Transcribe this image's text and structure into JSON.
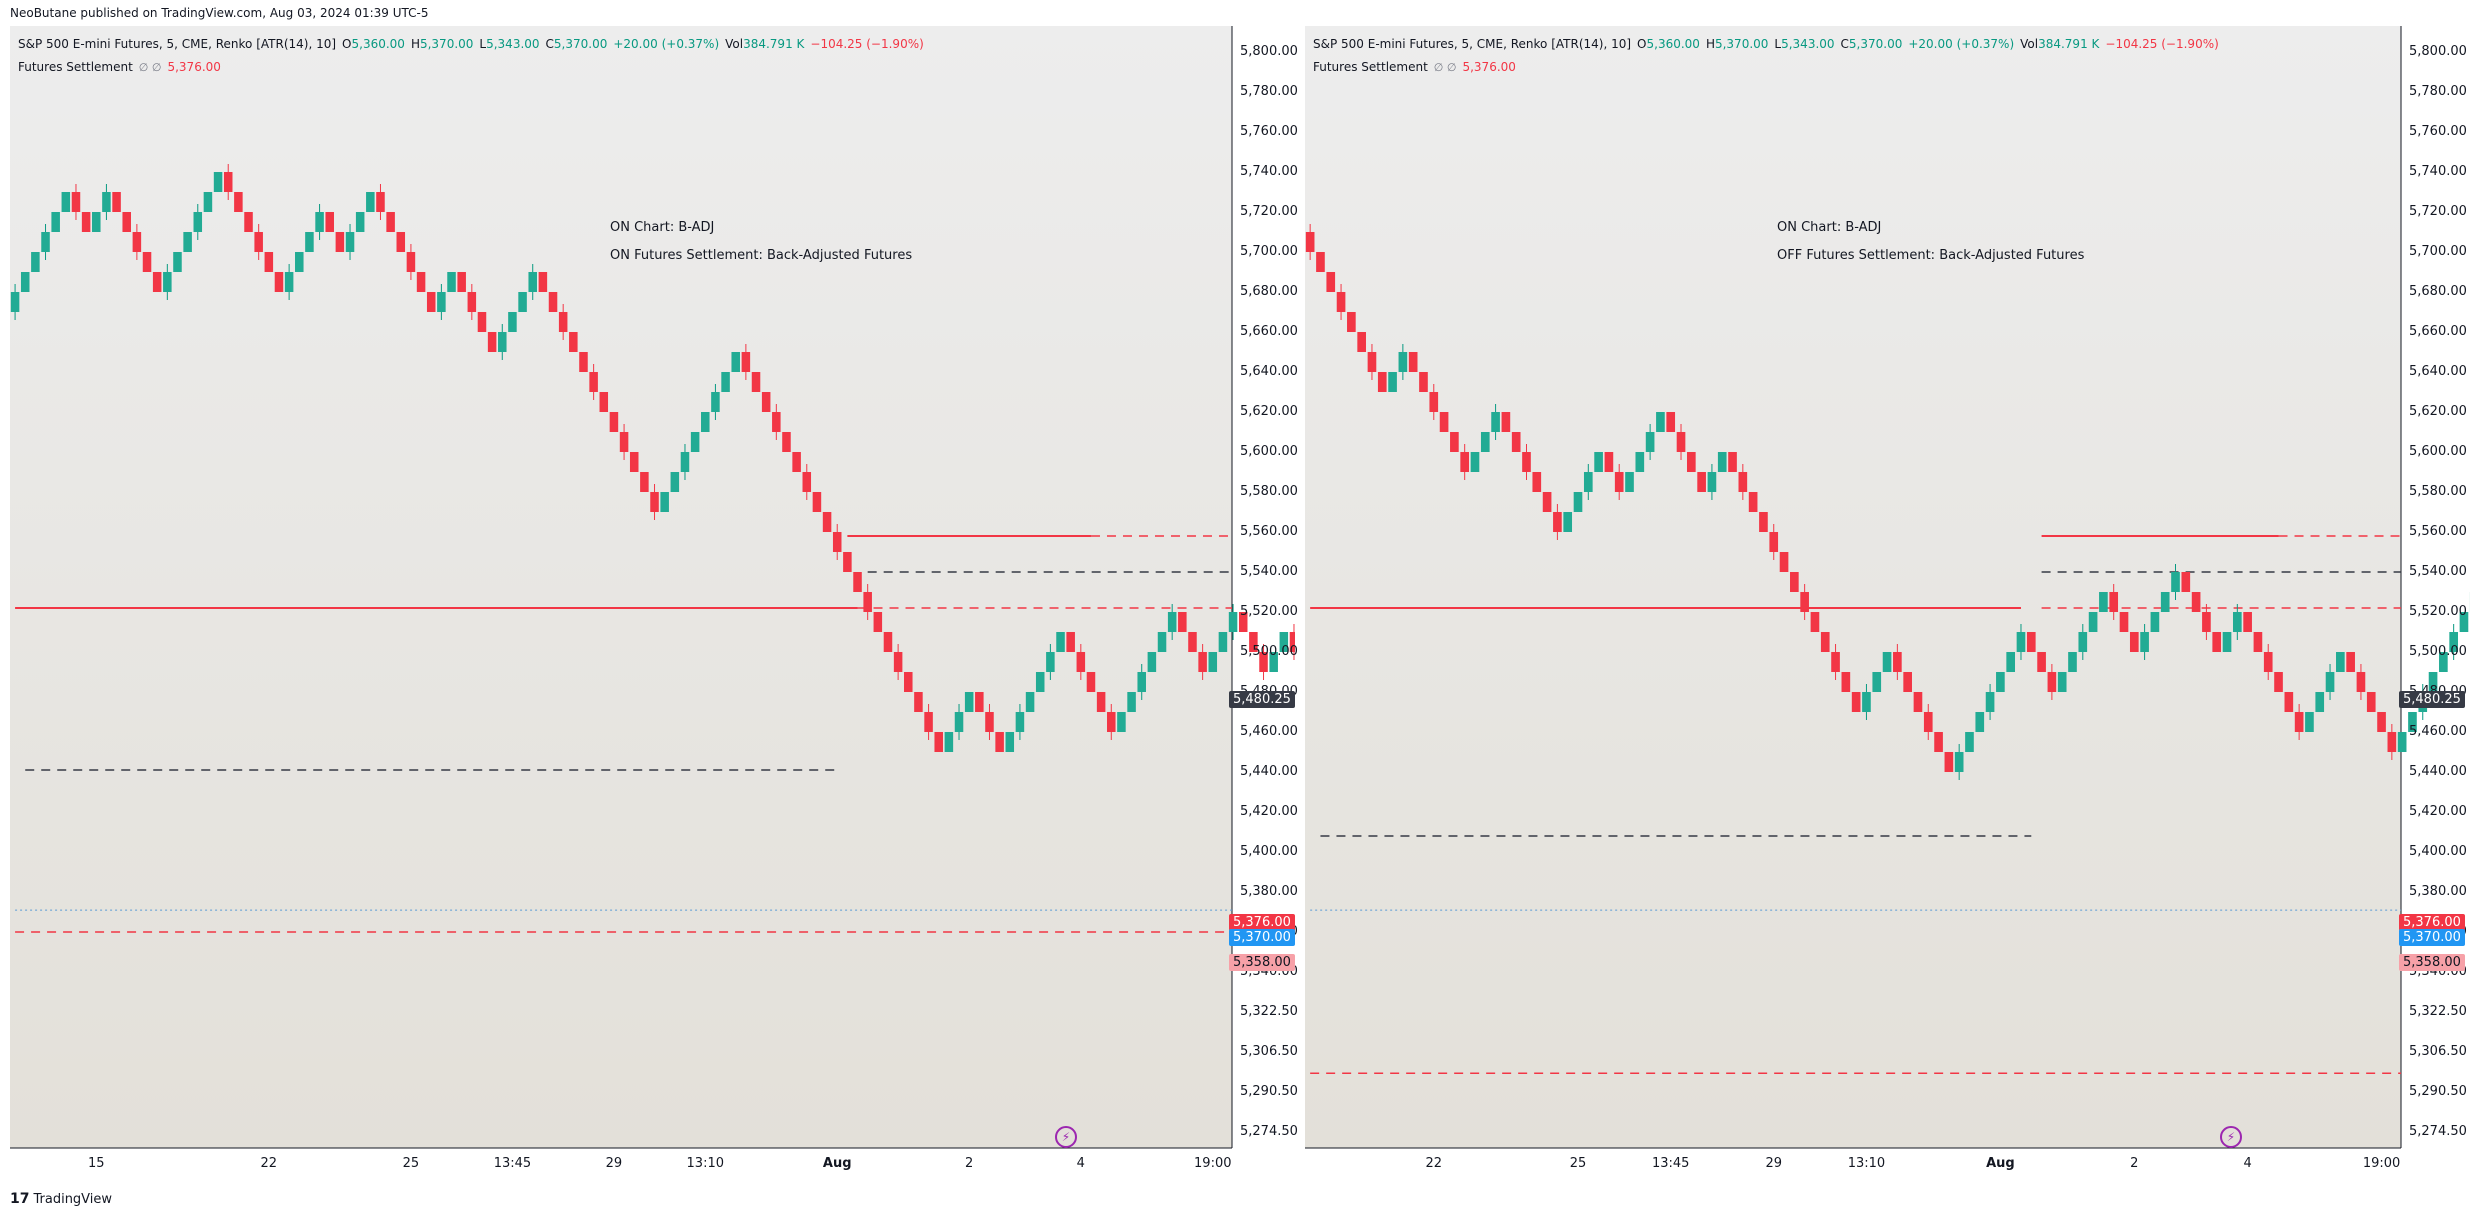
{
  "header": {
    "published": "NeoButane published on TradingView.com, Aug 03, 2024 01:39 UTC-5"
  },
  "footer": {
    "brand": "TradingView",
    "logo": "17"
  },
  "colors": {
    "up": "#089981",
    "down": "#f23645",
    "level_red": "#f23645",
    "level_black": "#363a45",
    "last_price": "#2196f3",
    "current": "#363a45",
    "settle_bg": "#f7a1a8"
  },
  "icons": {
    "bolt": "lightning-bolt-icon",
    "visibility": "eye-off-icon"
  },
  "panels": [
    {
      "legend": {
        "symbol": "S&P 500 E-mini Futures, 5, CME, Renko [ATR(14), 10]",
        "o_label": "O",
        "o": "5,360.00",
        "h_label": "H",
        "h": "5,370.00",
        "l_label": "L",
        "l": "5,343.00",
        "c_label": "C",
        "c": "5,370.00",
        "change": "+20.00 (+0.37%)",
        "vol_label": "Vol",
        "vol": "384.791 K",
        "vol_change": "−104.25 (−1.90%)",
        "indicator": "Futures Settlement",
        "indicator_icons": "∅  ∅",
        "indicator_value": "5,376.00"
      },
      "notes": [
        "ON Chart: B-ADJ",
        "ON Futures Settlement: Back-Adjusted Futures"
      ],
      "price_tags": {
        "settle": "5,376.00",
        "last": "5,370.00",
        "prev": "5,358.00",
        "current": "5,480.25"
      }
    },
    {
      "legend": {
        "symbol": "S&P 500 E-mini Futures, 5, CME, Renko [ATR(14), 10]",
        "o_label": "O",
        "o": "5,360.00",
        "h_label": "H",
        "h": "5,370.00",
        "l_label": "L",
        "l": "5,343.00",
        "c_label": "C",
        "c": "5,370.00",
        "change": "+20.00 (+0.37%)",
        "vol_label": "Vol",
        "vol": "384.791 K",
        "vol_change": "−104.25 (−1.90%)",
        "indicator": "Futures Settlement",
        "indicator_icons": "∅  ∅",
        "indicator_value": "5,376.00"
      },
      "notes": [
        "ON Chart: B-ADJ",
        "OFF Futures Settlement: Back-Adjusted Futures"
      ],
      "price_tags": {
        "settle": "5,376.00",
        "last": "5,370.00",
        "prev": "5,358.00",
        "current": "5,480.25"
      }
    }
  ],
  "chart_data": [
    {
      "type": "renko",
      "title": "S&P 500 E-mini Futures, 5, CME, Renko [ATR(14), 10]",
      "y_ticks": [
        "5,800.00",
        "5,780.00",
        "5,760.00",
        "5,740.00",
        "5,720.00",
        "5,700.00",
        "5,680.00",
        "5,660.00",
        "5,640.00",
        "5,620.00",
        "5,600.00",
        "5,580.00",
        "5,560.00",
        "5,540.00",
        "5,520.00",
        "5,500.00",
        "5,480.00",
        "5,460.00",
        "5,440.00",
        "5,420.00",
        "5,400.00",
        "5,380.00",
        "5,358.00",
        "5,340.00",
        "5,322.50",
        "5,306.50",
        "5,290.50",
        "5,274.50"
      ],
      "y_tick_values": [
        5800,
        5780,
        5760,
        5740,
        5720,
        5700,
        5680,
        5660,
        5640,
        5620,
        5600,
        5580,
        5560,
        5540,
        5520,
        5500,
        5480,
        5460,
        5440,
        5420,
        5400,
        5380,
        5358,
        5340,
        5322.5,
        5306.5,
        5290.5,
        5274.5
      ],
      "x_ticks": [
        "15",
        "22",
        "25",
        "13:45",
        "29",
        "13:10",
        "Aug",
        "2",
        "4",
        "19:00"
      ],
      "x_tick_index": [
        8,
        25,
        39,
        49,
        59,
        68,
        81,
        94,
        105,
        118
      ],
      "n_bricks": 104,
      "path": [
        [
          5680,
          6
        ],
        [
          5700,
          -2
        ],
        [
          5680,
          2
        ],
        [
          5700,
          -5
        ],
        [
          5650,
          6
        ],
        [
          5710,
          -6
        ],
        [
          5650,
          4
        ],
        [
          5690,
          -2
        ],
        [
          5670,
          3
        ],
        [
          5700,
          -6
        ],
        [
          5640,
          2
        ],
        [
          5660,
          -4
        ],
        [
          5620,
          4
        ],
        [
          5660,
          -3
        ],
        [
          5630,
          -9
        ],
        [
          5540,
          8
        ],
        [
          5620,
          -10
        ],
        [
          5520,
          -7
        ],
        [
          5450,
          -3
        ],
        [
          5420,
          3
        ],
        [
          5450,
          -3
        ],
        [
          5420,
          6
        ],
        [
          5480,
          -5
        ],
        [
          5430,
          6
        ],
        [
          5490,
          -3
        ],
        [
          5460,
          3
        ],
        [
          5490,
          -3
        ],
        [
          5460,
          2
        ],
        [
          5480,
          -2
        ],
        [
          5460,
          9
        ],
        [
          5550,
          -2
        ],
        [
          5530,
          4
        ],
        [
          5570,
          -3
        ],
        [
          5540,
          2
        ],
        [
          5560,
          -9
        ],
        [
          5470,
          2
        ],
        [
          5490,
          -5
        ],
        [
          5440,
          2
        ],
        [
          5460,
          -9
        ],
        [
          5370,
          2
        ],
        [
          5390,
          -4
        ],
        [
          5350,
          3
        ],
        [
          5380,
          -2
        ],
        [
          5360,
          1
        ]
      ],
      "path_start": 5670,
      "horizontal_levels": [
        {
          "value": 5522,
          "style": "solid",
          "color": "red",
          "from": 0,
          "to": 83
        },
        {
          "value": 5522,
          "style": "dashed",
          "color": "red",
          "from": 83,
          "to": 120
        },
        {
          "value": 5558,
          "style": "solid",
          "color": "red",
          "from": 82,
          "to": 106
        },
        {
          "value": 5558,
          "style": "dashed",
          "color": "red",
          "from": 106,
          "to": 120
        },
        {
          "value": 5540,
          "style": "dashed",
          "color": "black",
          "from": 84,
          "to": 120
        },
        {
          "value": 5441,
          "style": "dashed",
          "color": "black",
          "from": 1,
          "to": 81
        },
        {
          "value": 5358,
          "style": "dashed",
          "color": "red",
          "from": 0,
          "to": 120
        },
        {
          "value": 5370,
          "style": "dotted",
          "color": "blue",
          "from": 0,
          "to": 120
        }
      ]
    },
    {
      "type": "renko",
      "title": "S&P 500 E-mini Futures, 5, CME, Renko [ATR(14), 10]",
      "y_ticks": [
        "5,800.00",
        "5,780.00",
        "5,760.00",
        "5,740.00",
        "5,720.00",
        "5,700.00",
        "5,680.00",
        "5,660.00",
        "5,640.00",
        "5,620.00",
        "5,600.00",
        "5,580.00",
        "5,560.00",
        "5,540.00",
        "5,520.00",
        "5,500.00",
        "5,480.00",
        "5,460.00",
        "5,440.00",
        "5,420.00",
        "5,400.00",
        "5,380.00",
        "5,358.00",
        "5,340.00",
        "5,322.50",
        "5,306.50",
        "5,290.50",
        "5,274.50"
      ],
      "y_tick_values": [
        5800,
        5780,
        5760,
        5740,
        5720,
        5700,
        5680,
        5660,
        5640,
        5620,
        5600,
        5580,
        5560,
        5540,
        5520,
        5500,
        5480,
        5460,
        5440,
        5420,
        5400,
        5380,
        5358,
        5340,
        5322.5,
        5306.5,
        5290.5,
        5274.5
      ],
      "x_ticks": [
        "22",
        "25",
        "13:45",
        "29",
        "13:10",
        "Aug",
        "2",
        "4",
        "19:00"
      ],
      "x_tick_index": [
        12,
        26,
        35,
        45,
        54,
        67,
        80,
        91,
        104
      ],
      "n_bricks": 90,
      "path": [
        [
          5700,
          -8
        ],
        [
          5620,
          2
        ],
        [
          5640,
          -6
        ],
        [
          5580,
          3
        ],
        [
          5610,
          -6
        ],
        [
          5550,
          4
        ],
        [
          5590,
          -2
        ],
        [
          5570,
          4
        ],
        [
          5610,
          -4
        ],
        [
          5570,
          2
        ],
        [
          5590,
          -4
        ],
        [
          5550,
          -6
        ],
        [
          5490,
          -3
        ],
        [
          5460,
          3
        ],
        [
          5490,
          -3
        ],
        [
          5460,
          -3
        ],
        [
          5430,
          7
        ],
        [
          5500,
          -3
        ],
        [
          5470,
          5
        ],
        [
          5520,
          -3
        ],
        [
          5490,
          4
        ],
        [
          5530,
          -4
        ],
        [
          5490,
          2
        ],
        [
          5510,
          -3
        ],
        [
          5480,
          -3
        ],
        [
          5450,
          4
        ],
        [
          5490,
          -5
        ],
        [
          5440,
          9
        ],
        [
          5530,
          -2
        ],
        [
          5510,
          4
        ],
        [
          5550,
          -2
        ],
        [
          5530,
          3
        ],
        [
          5560,
          -2
        ],
        [
          5540,
          -8
        ],
        [
          5460,
          2
        ],
        [
          5480,
          -4
        ],
        [
          5440,
          -6
        ],
        [
          5380,
          2
        ],
        [
          5400,
          -4
        ],
        [
          5360,
          2
        ],
        [
          5380,
          -1
        ]
      ],
      "path_start": 5710,
      "horizontal_levels": [
        {
          "value": 5522,
          "style": "solid",
          "color": "red",
          "from": 0,
          "to": 69
        },
        {
          "value": 5522,
          "style": "dashed",
          "color": "red",
          "from": 71,
          "to": 106
        },
        {
          "value": 5558,
          "style": "solid",
          "color": "red",
          "from": 71,
          "to": 94
        },
        {
          "value": 5558,
          "style": "dashed",
          "color": "red",
          "from": 94,
          "to": 106
        },
        {
          "value": 5540,
          "style": "dashed",
          "color": "black",
          "from": 71,
          "to": 106
        },
        {
          "value": 5408,
          "style": "dashed",
          "color": "black",
          "from": 1,
          "to": 70
        },
        {
          "value": 5298,
          "style": "dashed",
          "color": "red",
          "from": 0,
          "to": 106
        },
        {
          "value": 5370,
          "style": "dotted",
          "color": "blue",
          "from": 0,
          "to": 106
        }
      ]
    }
  ]
}
